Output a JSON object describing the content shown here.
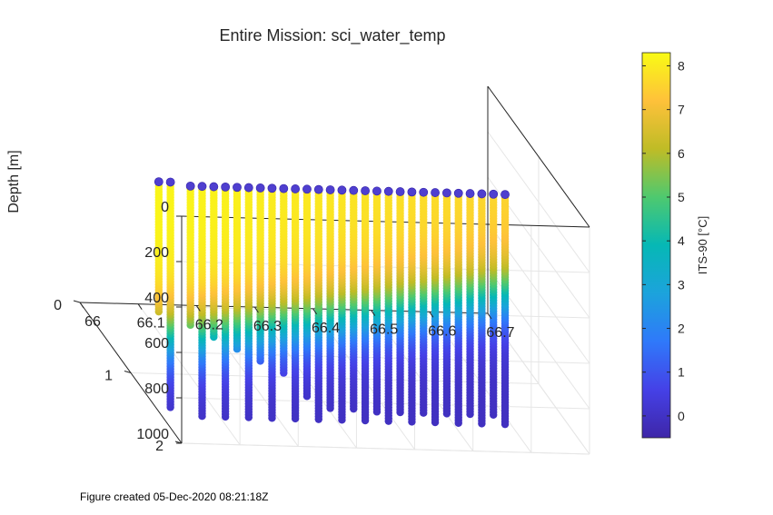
{
  "chart_data": {
    "type": "scatter3d",
    "title": "Entire Mission: sci_water_temp",
    "zlabel": "Depth [m]",
    "xlabel": "",
    "ylabel": "",
    "x_ticks": [
      "66",
      "66.1",
      "66.2",
      "66.3",
      "66.4",
      "66.5",
      "66.6",
      "66.7"
    ],
    "y_ticks": [
      "0",
      "1",
      "2"
    ],
    "depth_ticks": [
      "0",
      "200",
      "400",
      "600",
      "800",
      "1000"
    ],
    "xlim": [
      66,
      66.7
    ],
    "ylim": [
      0,
      2
    ],
    "depth_lim": [
      0,
      1000
    ],
    "grid": true,
    "colormap": "parula",
    "colorbar": {
      "label": "ITS-90 [°C]",
      "clim": [
        -0.5,
        8.3
      ],
      "ticks": [
        "0",
        "1",
        "2",
        "3",
        "4",
        "5",
        "6",
        "7",
        "8"
      ]
    },
    "casts": [
      {
        "x": 66.0,
        "y": 1.55,
        "bottom": 560
      },
      {
        "x": 66.02,
        "y": 1.55,
        "bottom": 980
      },
      {
        "x": 66.05,
        "y": 1.6,
        "bottom": 600
      },
      {
        "x": 66.07,
        "y": 1.6,
        "bottom": 1000
      },
      {
        "x": 66.09,
        "y": 1.6,
        "bottom": 650
      },
      {
        "x": 66.11,
        "y": 1.6,
        "bottom": 1000
      },
      {
        "x": 66.13,
        "y": 1.6,
        "bottom": 700
      },
      {
        "x": 66.15,
        "y": 1.6,
        "bottom": 1000
      },
      {
        "x": 66.17,
        "y": 1.6,
        "bottom": 750
      },
      {
        "x": 66.19,
        "y": 1.6,
        "bottom": 1000
      },
      {
        "x": 66.21,
        "y": 1.6,
        "bottom": 800
      },
      {
        "x": 66.23,
        "y": 1.6,
        "bottom": 1000
      },
      {
        "x": 66.25,
        "y": 1.6,
        "bottom": 900
      },
      {
        "x": 66.27,
        "y": 1.6,
        "bottom": 1000
      },
      {
        "x": 66.29,
        "y": 1.6,
        "bottom": 950
      },
      {
        "x": 66.31,
        "y": 1.6,
        "bottom": 1000
      },
      {
        "x": 66.33,
        "y": 1.6,
        "bottom": 950
      },
      {
        "x": 66.35,
        "y": 1.6,
        "bottom": 1000
      },
      {
        "x": 66.37,
        "y": 1.6,
        "bottom": 960
      },
      {
        "x": 66.39,
        "y": 1.6,
        "bottom": 1000
      },
      {
        "x": 66.41,
        "y": 1.6,
        "bottom": 960
      },
      {
        "x": 66.43,
        "y": 1.6,
        "bottom": 1000
      },
      {
        "x": 66.45,
        "y": 1.6,
        "bottom": 960
      },
      {
        "x": 66.47,
        "y": 1.6,
        "bottom": 1000
      },
      {
        "x": 66.49,
        "y": 1.6,
        "bottom": 960
      },
      {
        "x": 66.51,
        "y": 1.6,
        "bottom": 1000
      },
      {
        "x": 66.53,
        "y": 1.6,
        "bottom": 960
      },
      {
        "x": 66.55,
        "y": 1.6,
        "bottom": 1000
      },
      {
        "x": 66.57,
        "y": 1.6,
        "bottom": 960
      },
      {
        "x": 66.59,
        "y": 1.6,
        "bottom": 1000
      }
    ]
  },
  "footer": "Figure created 05-Dec-2020 08:21:18Z"
}
